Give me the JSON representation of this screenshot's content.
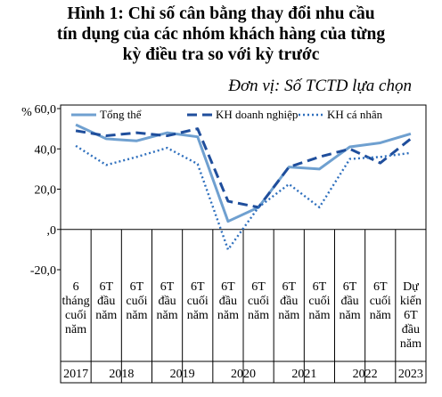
{
  "title_lines": [
    "Hình 1:  Chỉ số cân bằng thay đổi nhu cầu",
    "tín dụng của các nhóm khách hàng của từng",
    "kỳ điều tra so với kỳ trước"
  ],
  "unit_label": "Đơn vị: Số TCTD lựa chọn",
  "chart_data": {
    "type": "line",
    "y_unit": "%",
    "ylim": [
      -20,
      60
    ],
    "yticks": [
      -20,
      0,
      20,
      40,
      60
    ],
    "ytick_labels": [
      "-20,0",
      ",0",
      "20,0",
      "40,0",
      "60,0"
    ],
    "grid": false,
    "legend_position": "top",
    "categories": [
      [
        "6",
        "tháng",
        "cuối",
        "năm"
      ],
      [
        "6T",
        "đầu",
        "năm"
      ],
      [
        "6T",
        "cuối",
        "năm"
      ],
      [
        "6T",
        "đầu",
        "năm"
      ],
      [
        "6T",
        "cuối",
        "năm"
      ],
      [
        "6T",
        "đầu",
        "năm"
      ],
      [
        "6T",
        "cuối",
        "năm"
      ],
      [
        "6T",
        "đầu",
        "năm"
      ],
      [
        "6T",
        "cuối",
        "năm"
      ],
      [
        "6T",
        "đầu",
        "năm"
      ],
      [
        "6T",
        "cuối",
        "năm"
      ],
      [
        "Dự",
        "kiến",
        "6T",
        "đầu",
        "năm"
      ]
    ],
    "years": [
      {
        "label": "2017",
        "span": 1
      },
      {
        "label": "2018",
        "span": 2
      },
      {
        "label": "2019",
        "span": 2
      },
      {
        "label": "2020",
        "span": 2
      },
      {
        "label": "2021",
        "span": 2
      },
      {
        "label": "2022",
        "span": 2
      },
      {
        "label": "2023",
        "span": 1
      }
    ],
    "series": [
      {
        "name": "Tổng thể",
        "style": "solid",
        "color": "#6fa0d0",
        "values": [
          52,
          45,
          44,
          48,
          46,
          4,
          11,
          31,
          30,
          41,
          43,
          47.5
        ]
      },
      {
        "name": "KH doanh nghiệp",
        "style": "dashed",
        "color": "#1f4e9c",
        "values": [
          49,
          46.5,
          48,
          46.5,
          50,
          14,
          11,
          31,
          36,
          40,
          33,
          45
        ]
      },
      {
        "name": "KH cá nhân",
        "style": "dotted",
        "color": "#2e6fbd",
        "values": [
          41.5,
          32,
          36,
          40.5,
          32.5,
          -10,
          11,
          22.5,
          11,
          35,
          36,
          38
        ]
      }
    ]
  }
}
